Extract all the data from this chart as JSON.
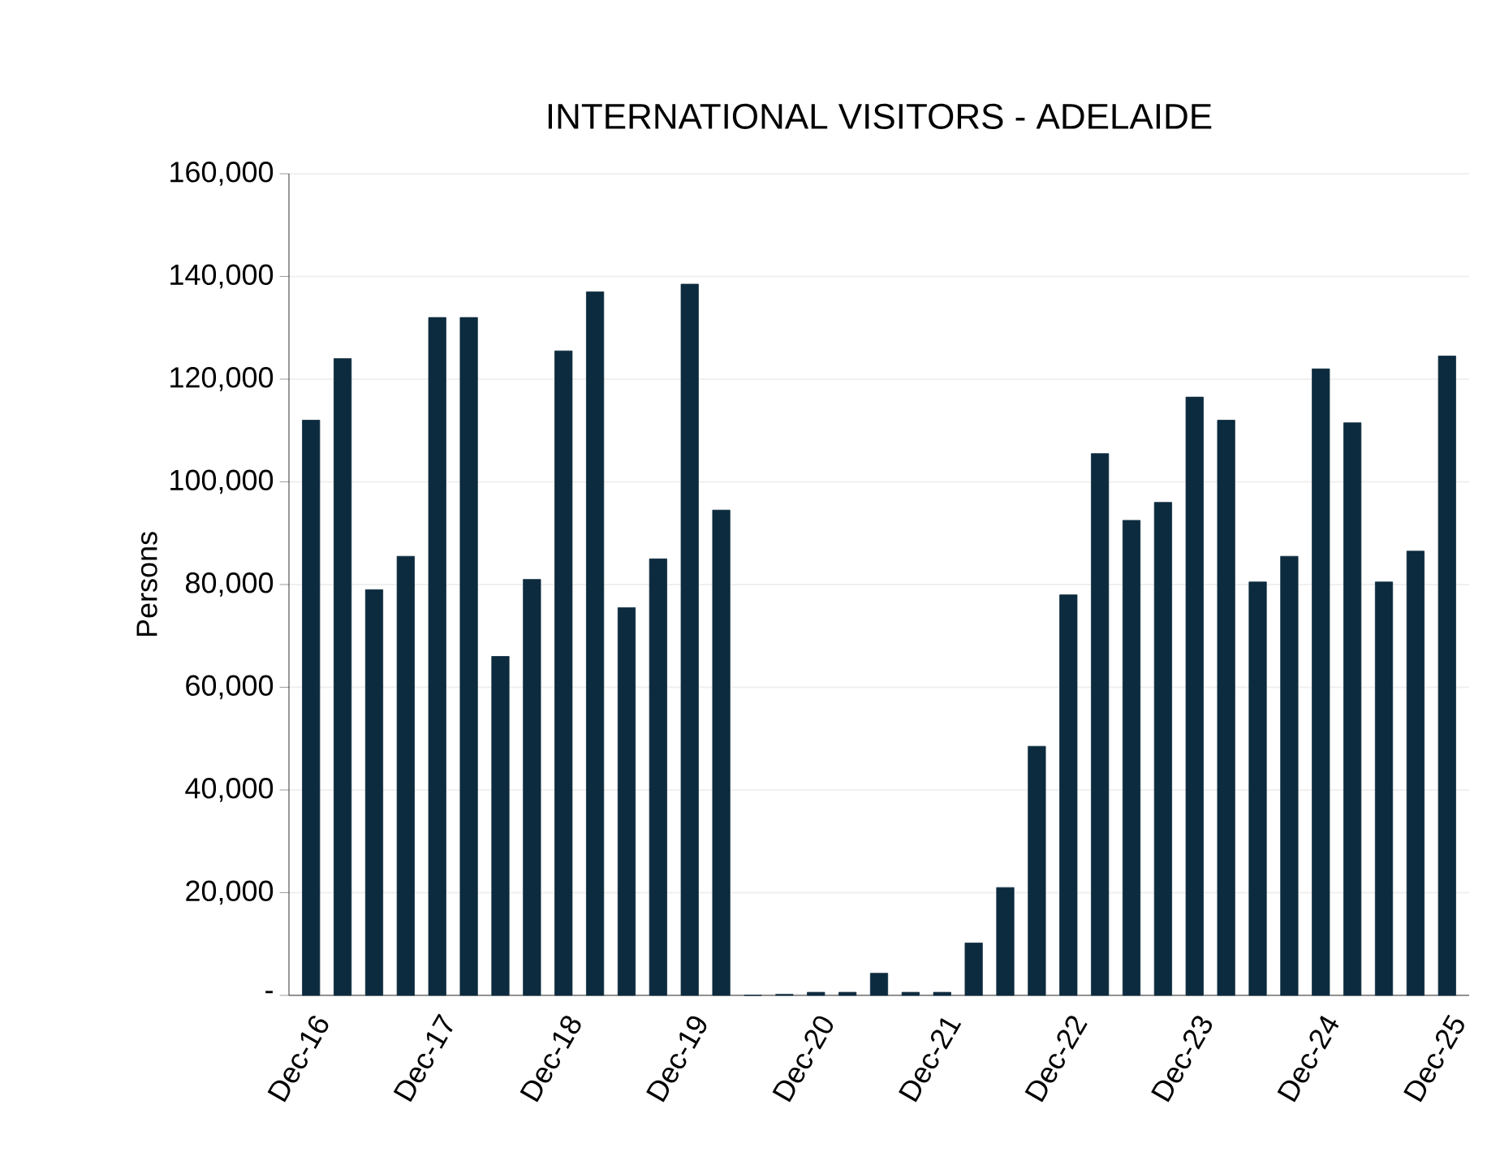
{
  "chart_data": {
    "type": "bar",
    "title": "INTERNATIONAL VISITORS - ADELAIDE",
    "ylabel": "Persons",
    "categories": [
      "Dec-16",
      null,
      null,
      null,
      "Dec-17",
      null,
      null,
      null,
      "Dec-18",
      null,
      null,
      null,
      "Dec-19",
      null,
      null,
      null,
      "Dec-20",
      null,
      null,
      null,
      "Dec-21",
      null,
      null,
      null,
      "Dec-22",
      null,
      null,
      null,
      "Dec-23",
      null,
      null,
      null,
      "Dec-24",
      null,
      null,
      null,
      "Dec-25"
    ],
    "values": [
      112000,
      124000,
      79000,
      85500,
      132000,
      132000,
      66000,
      81000,
      125500,
      137000,
      75500,
      85000,
      138500,
      94500,
      0,
      200,
      600,
      600,
      4300,
      600,
      600,
      10200,
      21000,
      48500,
      78000,
      105500,
      92500,
      96000,
      116500,
      112000,
      80500,
      85500,
      122000,
      111500,
      80500,
      86500,
      124500
    ],
    "color": "#0d2b3e",
    "ylim": [
      0,
      160000
    ],
    "yticks": [
      {
        "value": 0,
        "label": "-"
      },
      {
        "value": 20000,
        "label": "20,000"
      },
      {
        "value": 40000,
        "label": "40,000"
      },
      {
        "value": 60000,
        "label": "60,000"
      },
      {
        "value": 80000,
        "label": "80,000"
      },
      {
        "value": 100000,
        "label": "100,000"
      },
      {
        "value": 120000,
        "label": "120,000"
      },
      {
        "value": 140000,
        "label": "140,000"
      },
      {
        "value": 160000,
        "label": "160,000"
      }
    ],
    "grid": "y"
  }
}
